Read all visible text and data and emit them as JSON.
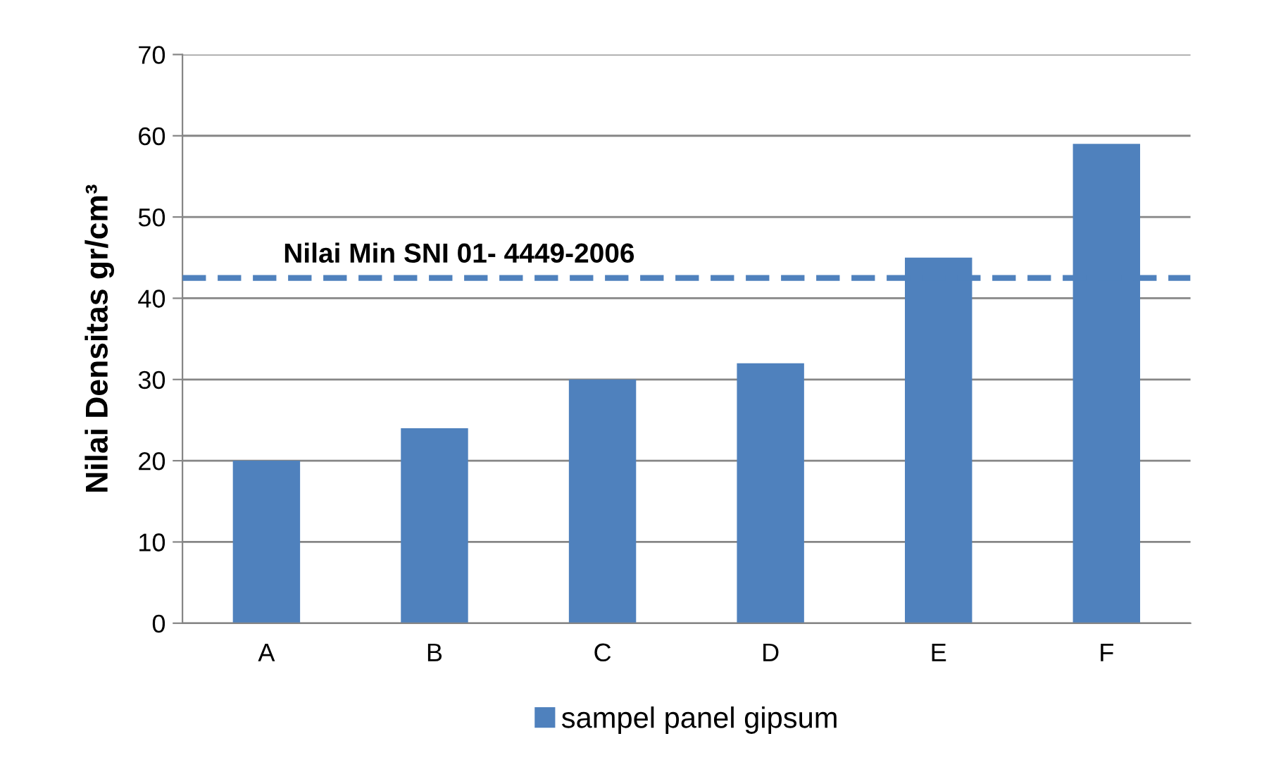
{
  "chart_data": {
    "type": "bar",
    "ylabel": "Nilai Densitas gr/cm³",
    "categories": [
      "A",
      "B",
      "C",
      "D",
      "E",
      "F"
    ],
    "series": [
      {
        "name": "sampel panel gipsum",
        "color": "#4f81bd",
        "values": [
          20,
          24,
          30,
          32,
          45,
          59
        ]
      }
    ],
    "ylim": [
      0,
      70
    ],
    "yticks": [
      0,
      10,
      20,
      30,
      40,
      50,
      60,
      70
    ],
    "grid": "y",
    "legend": "bottom",
    "ref_lines": [
      {
        "axis": "y",
        "value": 42.5,
        "label": "Nilai Min SNI 01- 4449-2006",
        "color": "#4f81bd",
        "line_style": "dashed"
      }
    ]
  }
}
